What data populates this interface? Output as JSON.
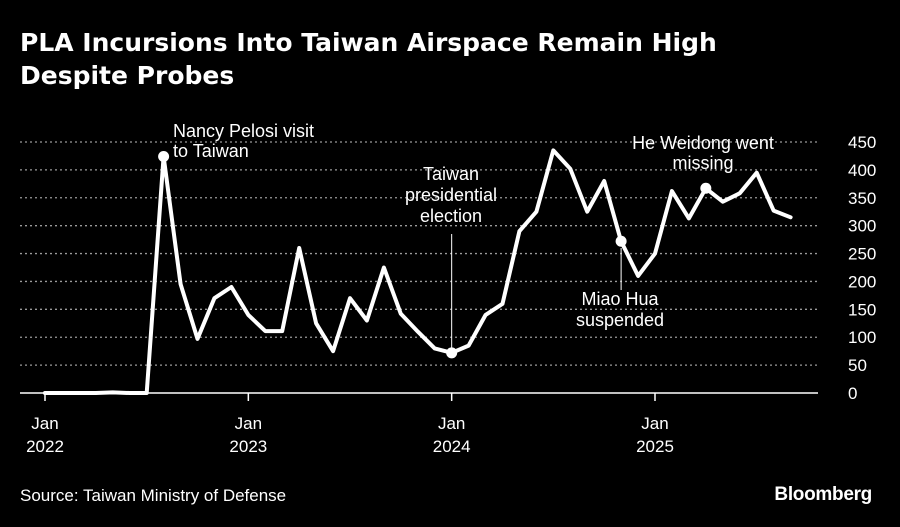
{
  "title": "PLA Incursions Into Taiwan Airspace Remain High Despite Probes",
  "source": "Source: Taiwan Ministry of Defense",
  "brand": "Bloomberg",
  "chart_data": {
    "type": "line",
    "title": "PLA Incursions Into Taiwan Airspace Remain High Despite Probes",
    "xlabel": "",
    "ylabel": "",
    "ylim": [
      0,
      450
    ],
    "yticks": [
      0,
      50,
      100,
      150,
      200,
      250,
      300,
      350,
      400,
      450
    ],
    "grid": "horizontal dotted",
    "xticks": [
      {
        "x": "2022-01",
        "label1": "Jan",
        "label2": "2022"
      },
      {
        "x": "2023-01",
        "label1": "Jan",
        "label2": "2023"
      },
      {
        "x": "2024-01",
        "label1": "Jan",
        "label2": "2024"
      },
      {
        "x": "2025-01",
        "label1": "Jan",
        "label2": "2025"
      }
    ],
    "x": [
      "2022-01",
      "2022-02",
      "2022-03",
      "2022-04",
      "2022-05",
      "2022-06",
      "2022-07",
      "2022-08",
      "2022-09",
      "2022-10",
      "2022-11",
      "2022-12",
      "2023-01",
      "2023-02",
      "2023-03",
      "2023-04",
      "2023-05",
      "2023-06",
      "2023-07",
      "2023-08",
      "2023-09",
      "2023-10",
      "2023-11",
      "2023-12",
      "2024-01",
      "2024-02",
      "2024-03",
      "2024-04",
      "2024-05",
      "2024-06",
      "2024-07",
      "2024-08",
      "2024-09",
      "2024-10",
      "2024-11",
      "2024-12",
      "2025-01",
      "2025-02",
      "2025-03",
      "2025-04",
      "2025-05",
      "2025-06",
      "2025-07",
      "2025-08",
      "2025-09"
    ],
    "values": [
      0,
      0,
      0,
      0,
      1,
      0,
      0,
      424,
      195,
      97,
      170,
      190,
      140,
      111,
      111,
      260,
      125,
      75,
      170,
      130,
      225,
      142,
      110,
      80,
      72,
      85,
      140,
      160,
      290,
      325,
      435,
      402,
      325,
      380,
      272,
      210,
      250,
      362,
      313,
      367,
      343,
      358,
      395,
      327,
      315
    ],
    "color": "#ffffff",
    "annotations": [
      {
        "x": "2022-08",
        "y": 424,
        "lines": [
          "Nancy Pelosi visit",
          "to Taiwan"
        ],
        "style": "dot-label"
      },
      {
        "x": "2024-01",
        "y": 72,
        "lines": [
          "Taiwan",
          "presidential",
          "election"
        ],
        "style": "vertical-line"
      },
      {
        "x": "2024-11",
        "y": 272,
        "lines": [
          "Miao Hua",
          "suspended"
        ],
        "style": "dot-leader"
      },
      {
        "x": "2025-04",
        "y": 367,
        "lines": [
          "He Weidong went",
          "missing"
        ],
        "style": "dot-label"
      }
    ]
  }
}
